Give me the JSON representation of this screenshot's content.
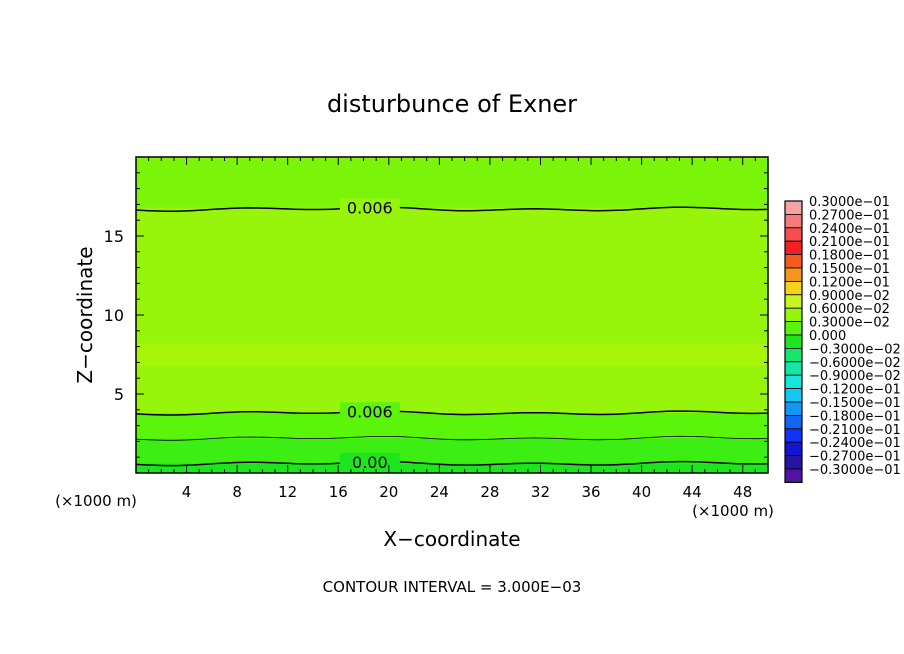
{
  "chart_data": {
    "type": "heatmap",
    "title": "disturbunce of Exner",
    "xlabel": "X−coordinate",
    "ylabel": "Z−coordinate",
    "x_unit": "(×1000 m)",
    "y_unit": "(×1000 m)",
    "footer": "CONTOUR INTERVAL = 3.000E−03",
    "xlim": [
      0,
      50
    ],
    "ylim": [
      0,
      20
    ],
    "x_ticks": [
      4,
      8,
      12,
      16,
      20,
      24,
      28,
      32,
      36,
      40,
      44,
      48
    ],
    "y_ticks": [
      5,
      10,
      15
    ],
    "legend_placement": "right",
    "colorbar": [
      {
        "label": "0.3000e−01",
        "color": "#f7a3a3"
      },
      {
        "label": "0.2700e−01",
        "color": "#f77a7a"
      },
      {
        "label": "0.2400e−01",
        "color": "#f54e4e"
      },
      {
        "label": "0.2100e−01",
        "color": "#f52020"
      },
      {
        "label": "0.1800e−01",
        "color": "#f55a1e"
      },
      {
        "label": "0.1500e−01",
        "color": "#f5951e"
      },
      {
        "label": "0.1200e−01",
        "color": "#f5d21e"
      },
      {
        "label": "0.9000e−02",
        "color": "#c8f51e"
      },
      {
        "label": "0.6000e−02",
        "color": "#96f50a"
      },
      {
        "label": "0.3000e−02",
        "color": "#5af50a"
      },
      {
        "label": "0.000",
        "color": "#1ee61e"
      },
      {
        "label": "−0.3000e−02",
        "color": "#14e66e"
      },
      {
        "label": "−0.6000e−02",
        "color": "#14e6a5"
      },
      {
        "label": "−0.9000e−02",
        "color": "#14e6dc"
      },
      {
        "label": "−0.1200e−01",
        "color": "#14c8f5"
      },
      {
        "label": "−0.1500e−01",
        "color": "#1496f5"
      },
      {
        "label": "−0.1800e−01",
        "color": "#1464f5"
      },
      {
        "label": "−0.2100e−01",
        "color": "#1432f5"
      },
      {
        "label": "−0.2400e−01",
        "color": "#1414d2"
      },
      {
        "label": "−0.2700e−01",
        "color": "#2814a0"
      },
      {
        "label": "−0.3000e−01",
        "color": "#5014a0"
      }
    ],
    "bands": [
      {
        "z0": 0.0,
        "z1": 0.6,
        "color": "#1ee61e"
      },
      {
        "z0": 0.6,
        "z1": 2.2,
        "color": "#3cee14"
      },
      {
        "z0": 2.2,
        "z1": 3.8,
        "color": "#5af50a"
      },
      {
        "z0": 3.8,
        "z1": 6.8,
        "color": "#96f50a"
      },
      {
        "z0": 6.8,
        "z1": 8.2,
        "color": "#a8f50a"
      },
      {
        "z0": 8.2,
        "z1": 16.8,
        "color": "#96f50a"
      },
      {
        "z0": 16.8,
        "z1": 19.9,
        "color": "#7af50a"
      }
    ],
    "contours": [
      {
        "z": 0.6,
        "label": "0.00",
        "label_x": 18.5,
        "width": 1.5
      },
      {
        "z": 2.2,
        "label": "",
        "width": 0.8
      },
      {
        "z": 3.8,
        "label": "0.006",
        "label_x": 18.5,
        "width": 1.5
      },
      {
        "z": 16.7,
        "label": "0.006",
        "label_x": 18.5,
        "width": 1.5
      }
    ]
  }
}
